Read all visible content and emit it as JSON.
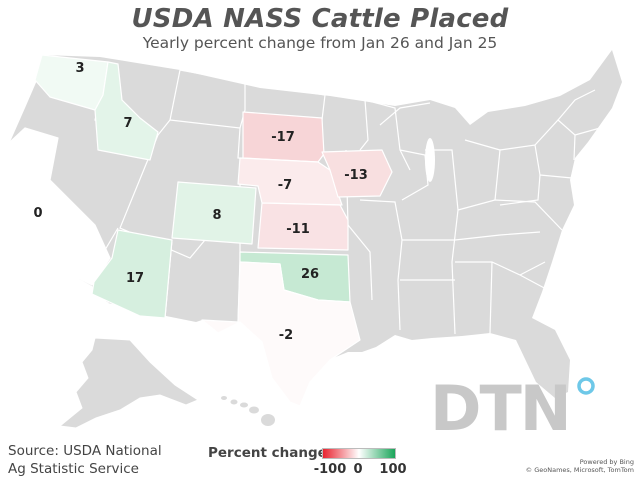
{
  "title": "USDA NASS Cattle Placed",
  "subtitle": "Yearly percent change from Jan 26 and Jan 25",
  "source": {
    "line1": "Source: USDA National",
    "line2": "Ag Statistic Service"
  },
  "legend": {
    "title": "Percent change",
    "min_label": "-100",
    "mid_label": "0",
    "max_label": "100",
    "color_min": "#e8232f",
    "color_mid": "#ffffff",
    "color_max": "#1aa55a"
  },
  "no_data_color": "#dadada",
  "states": [
    {
      "name": "Washington",
      "value": 3
    },
    {
      "name": "Idaho",
      "value": 7
    },
    {
      "name": "California",
      "value": 0
    },
    {
      "name": "Colorado",
      "value": 8
    },
    {
      "name": "Arizona",
      "value": 17
    },
    {
      "name": "South Dakota",
      "value": -17
    },
    {
      "name": "Nebraska",
      "value": -7
    },
    {
      "name": "Iowa",
      "value": -13
    },
    {
      "name": "Kansas",
      "value": -11
    },
    {
      "name": "Oklahoma",
      "value": 26
    },
    {
      "name": "Texas",
      "value": -2
    }
  ],
  "logo": {
    "text": "DTN",
    "accent_color": "#6ec8e8"
  },
  "attribution": {
    "line1": "Powered by Bing",
    "line2": "© GeoNames, Microsoft, TomTom"
  }
}
